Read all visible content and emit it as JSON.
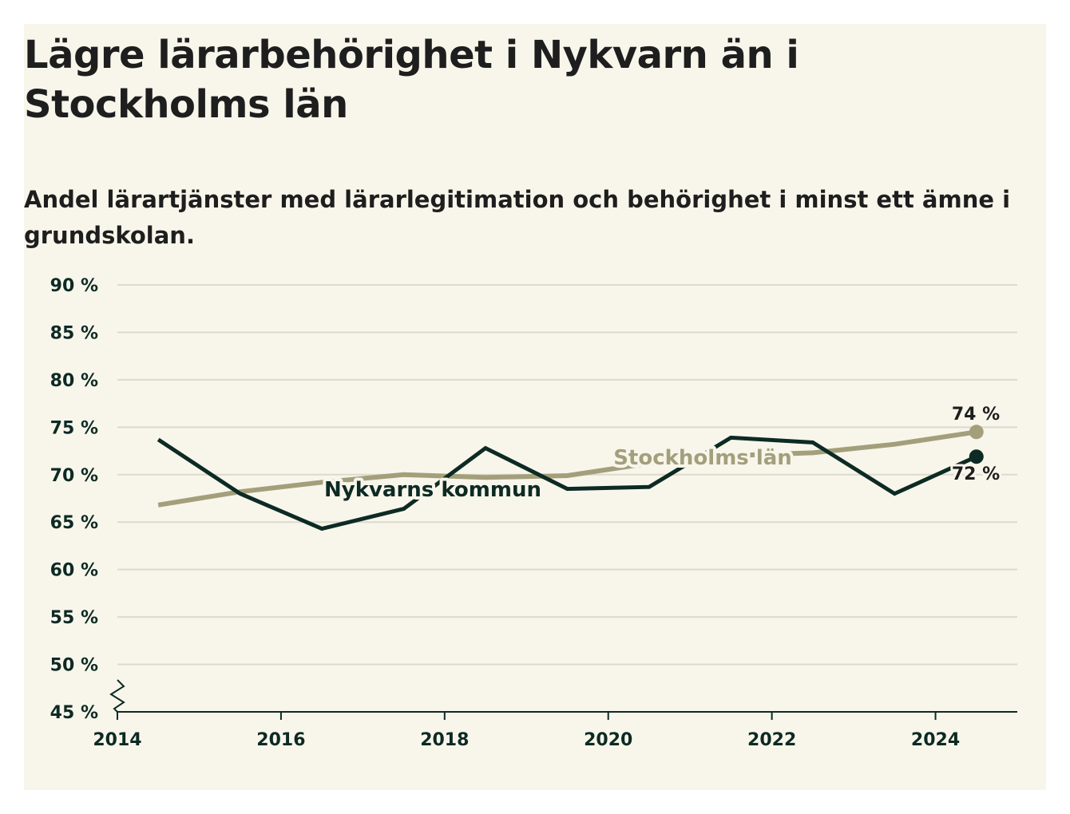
{
  "chart_data": {
    "type": "line",
    "title": "Lägre lärarbehörighet i Nykvarn än i Stockholms län",
    "subtitle": "Andel lärartjänster med lärarlegitimation och behörighet i minst ett ämne i grundskolan.",
    "xlabel": "",
    "ylabel": "",
    "x": [
      2014.5,
      2015.5,
      2016.5,
      2017.5,
      2018.5,
      2019.5,
      2020.5,
      2021.5,
      2022.5,
      2023.5,
      2024.5
    ],
    "x_ticks": [
      2014,
      2016,
      2018,
      2020,
      2022,
      2024
    ],
    "x_tick_labels": [
      "2014",
      "2016",
      "2018",
      "2020",
      "2022",
      "2024"
    ],
    "xlim": [
      2014,
      2025
    ],
    "y_ticks": [
      45,
      50,
      55,
      60,
      65,
      70,
      75,
      80,
      85,
      90
    ],
    "y_tick_labels": [
      "45 %",
      "50 %",
      "55 %",
      "60 %",
      "65 %",
      "70 %",
      "75 %",
      "80 %",
      "85 %",
      "90 %"
    ],
    "ylim": [
      45,
      90
    ],
    "grid": true,
    "axis_break": true,
    "series": [
      {
        "name": "Stockholms län",
        "color": "#a39f7b",
        "values": [
          66.8,
          68.2,
          69.2,
          70.0,
          69.7,
          69.9,
          71.2,
          72.0,
          72.3,
          73.2,
          74.5
        ],
        "end_label": "74 %"
      },
      {
        "name": "Nykvarns kommun",
        "color": "#0d2a24",
        "values": [
          73.7,
          68.0,
          64.3,
          66.4,
          72.8,
          68.5,
          68.7,
          73.9,
          73.4,
          68.0,
          71.9
        ],
        "end_label": "72 %"
      }
    ]
  }
}
